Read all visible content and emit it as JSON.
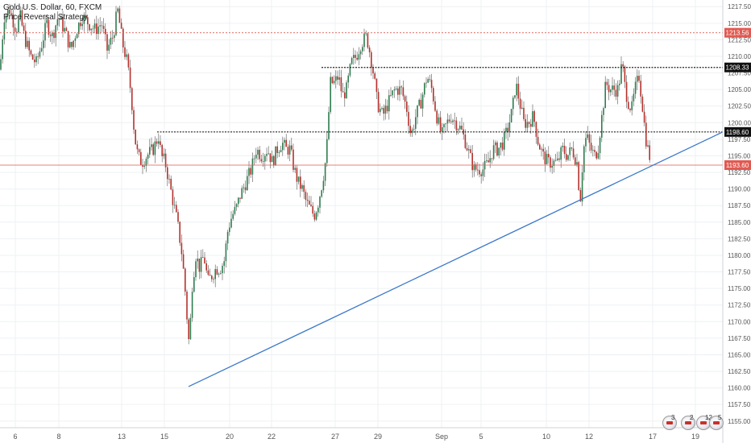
{
  "legend": {
    "symbol_line": "Gold U.S. Dollar, 60, FXCM",
    "study_line": "Price Reversal Strategy"
  },
  "colors": {
    "up": "#2e7d4f",
    "down": "#b5312c",
    "wick": "#555555",
    "grid": "#eef0f3",
    "axis_text": "#555555",
    "trendline": "#3b78c8",
    "dotted": "#222222",
    "red_line": "#e05a52"
  },
  "chart_data": {
    "type": "candlestick",
    "title": "",
    "xlabel": "",
    "ylabel": "",
    "x_ticks": [
      "6",
      "8",
      "13",
      "15",
      "20",
      "22",
      "27",
      "29",
      "Sep",
      "5",
      "10",
      "12",
      "17",
      "19"
    ],
    "y_ticks": [
      "1155.00",
      "1157.50",
      "1160.00",
      "1162.50",
      "1165.00",
      "1167.50",
      "1170.00",
      "1172.50",
      "1175.00",
      "1177.50",
      "1180.00",
      "1182.50",
      "1185.00",
      "1187.50",
      "1190.00",
      "1192.50",
      "1195.00",
      "1197.50",
      "1200.00",
      "1202.50",
      "1205.00",
      "1207.50",
      "1210.00",
      "1212.50",
      "1215.00",
      "1217.50"
    ],
    "ylim": [
      1154,
      1218.5
    ],
    "price_series_waypoints": [
      [
        0,
        1208
      ],
      [
        5,
        1216
      ],
      [
        12,
        1217
      ],
      [
        20,
        1214
      ],
      [
        25,
        1216
      ],
      [
        30,
        1213
      ],
      [
        38,
        1210
      ],
      [
        45,
        1209
      ],
      [
        52,
        1212
      ],
      [
        58,
        1215
      ],
      [
        65,
        1213
      ],
      [
        72,
        1216
      ],
      [
        80,
        1214
      ],
      [
        88,
        1211
      ],
      [
        95,
        1214
      ],
      [
        102,
        1216
      ],
      [
        110,
        1215
      ],
      [
        118,
        1214
      ],
      [
        126,
        1215
      ],
      [
        133,
        1211
      ],
      [
        140,
        1213
      ],
      [
        146,
        1217
      ],
      [
        152,
        1212
      ],
      [
        158,
        1209
      ],
      [
        163,
        1204
      ],
      [
        167,
        1198
      ],
      [
        171,
        1195
      ],
      [
        176,
        1194
      ],
      [
        182,
        1195
      ],
      [
        190,
        1196
      ],
      [
        197,
        1198
      ],
      [
        200,
        1195
      ],
      [
        205,
        1194
      ],
      [
        210,
        1191
      ],
      [
        215,
        1188
      ],
      [
        220,
        1185
      ],
      [
        225,
        1181
      ],
      [
        229,
        1176
      ],
      [
        233,
        1169
      ],
      [
        235,
        1166
      ],
      [
        238,
        1175
      ],
      [
        243,
        1180
      ],
      [
        248,
        1178
      ],
      [
        253,
        1180
      ],
      [
        258,
        1176
      ],
      [
        263,
        1177
      ],
      [
        268,
        1178
      ],
      [
        273,
        1178
      ],
      [
        278,
        1179
      ],
      [
        283,
        1184
      ],
      [
        288,
        1186
      ],
      [
        293,
        1187
      ],
      [
        298,
        1189
      ],
      [
        305,
        1191
      ],
      [
        312,
        1193
      ],
      [
        318,
        1196
      ],
      [
        325,
        1195
      ],
      [
        332,
        1196
      ],
      [
        338,
        1194
      ],
      [
        344,
        1196
      ],
      [
        350,
        1197
      ],
      [
        355,
        1196
      ],
      [
        360,
        1196
      ],
      [
        365,
        1193
      ],
      [
        370,
        1191
      ],
      [
        375,
        1190
      ],
      [
        380,
        1188
      ],
      [
        385,
        1187
      ],
      [
        390,
        1186
      ],
      [
        395,
        1188
      ],
      [
        400,
        1191
      ],
      [
        405,
        1195
      ],
      [
        410,
        1206
      ],
      [
        415,
        1206
      ],
      [
        420,
        1207
      ],
      [
        425,
        1204
      ],
      [
        430,
        1205
      ],
      [
        436,
        1209
      ],
      [
        442,
        1210
      ],
      [
        448,
        1212
      ],
      [
        455,
        1213
      ],
      [
        460,
        1210
      ],
      [
        464,
        1207
      ],
      [
        468,
        1203
      ],
      [
        475,
        1201
      ],
      [
        482,
        1203
      ],
      [
        490,
        1205
      ],
      [
        498,
        1205
      ],
      [
        505,
        1202
      ],
      [
        510,
        1198
      ],
      [
        516,
        1201
      ],
      [
        522,
        1203
      ],
      [
        530,
        1207
      ],
      [
        536,
        1205
      ],
      [
        542,
        1201
      ],
      [
        548,
        1198
      ],
      [
        555,
        1200
      ],
      [
        560,
        1201
      ],
      [
        566,
        1200
      ],
      [
        572,
        1199
      ],
      [
        578,
        1197
      ],
      [
        583,
        1195
      ],
      [
        588,
        1193
      ],
      [
        594,
        1193
      ],
      [
        600,
        1193
      ],
      [
        606,
        1194
      ],
      [
        612,
        1196
      ],
      [
        618,
        1196
      ],
      [
        624,
        1197
      ],
      [
        630,
        1199
      ],
      [
        636,
        1202
      ],
      [
        640,
        1206
      ],
      [
        645,
        1203
      ],
      [
        650,
        1200
      ],
      [
        656,
        1200
      ],
      [
        662,
        1201
      ],
      [
        668,
        1197
      ],
      [
        674,
        1195
      ],
      [
        680,
        1194
      ],
      [
        686,
        1194
      ],
      [
        692,
        1194
      ],
      [
        698,
        1196
      ],
      [
        704,
        1195
      ],
      [
        710,
        1196
      ],
      [
        716,
        1194
      ],
      [
        720,
        1188
      ],
      [
        724,
        1196
      ],
      [
        728,
        1198
      ],
      [
        733,
        1196
      ],
      [
        738,
        1195
      ],
      [
        742,
        1196
      ],
      [
        747,
        1201
      ],
      [
        752,
        1206
      ],
      [
        757,
        1205
      ],
      [
        762,
        1205
      ],
      [
        767,
        1205
      ],
      [
        772,
        1209
      ],
      [
        776,
        1205
      ],
      [
        780,
        1203
      ],
      [
        784,
        1202
      ],
      [
        788,
        1205
      ],
      [
        793,
        1207
      ],
      [
        797,
        1203
      ],
      [
        801,
        1198
      ],
      [
        804,
        1196
      ],
      [
        808,
        1194
      ]
    ],
    "horizontal_levels": [
      {
        "label": "1213.56",
        "value": 1213.56,
        "style": "red-dotted"
      },
      {
        "label": "1208.33",
        "value": 1208.33,
        "style": "black-dotted"
      },
      {
        "label": "1198.60",
        "value": 1198.6,
        "style": "black-dotted"
      },
      {
        "label": "1193.60",
        "value": 1193.6,
        "style": "red-solid"
      }
    ],
    "trendline": {
      "x1_tick": "15-16",
      "y1": 1160.2,
      "y2_at_axis": 1198.6
    },
    "events": [
      {
        "count": "3"
      },
      {
        "count": "2"
      },
      {
        "count": "12"
      },
      {
        "count": "5"
      }
    ]
  }
}
